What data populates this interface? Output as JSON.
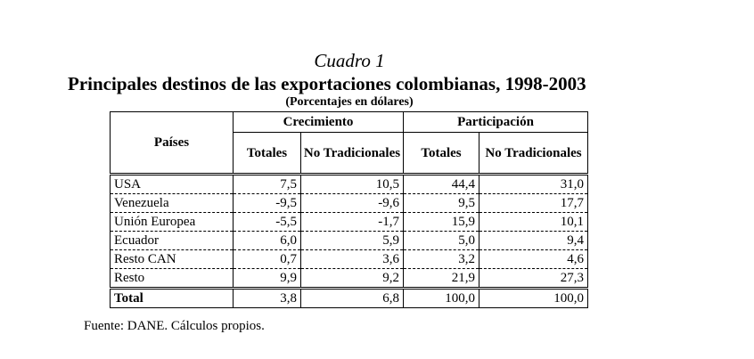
{
  "caption": "Cuadro 1",
  "title": "Principales destinos de las exportaciones colombianas, 1998-2003",
  "subtitle": "(Porcentajes en dólares)",
  "table": {
    "row_header": "Países",
    "groups": [
      "Crecimiento",
      "Participación"
    ],
    "subheaders": [
      "Totales",
      "No Tradicionales",
      "Totales",
      "No Tradicionales"
    ],
    "rows": [
      {
        "name": "USA",
        "values": [
          "7,5",
          "10,5",
          "44,4",
          "31,0"
        ]
      },
      {
        "name": "Venezuela",
        "values": [
          "-9,5",
          "-9,6",
          "9,5",
          "17,7"
        ]
      },
      {
        "name": "Unión Europea",
        "values": [
          "-5,5",
          "-1,7",
          "15,9",
          "10,1"
        ]
      },
      {
        "name": "Ecuador",
        "values": [
          "6,0",
          "5,9",
          "5,0",
          "9,4"
        ]
      },
      {
        "name": "Resto CAN",
        "values": [
          "0,7",
          "3,6",
          "3,2",
          "4,6"
        ]
      },
      {
        "name": "Resto",
        "values": [
          "9,9",
          "9,2",
          "21,9",
          "27,3"
        ]
      }
    ],
    "total": {
      "name": "Total",
      "values": [
        "3,8",
        "6,8",
        "100,0",
        "100,0"
      ]
    }
  },
  "source": "Fuente: DANE. Cálculos propios."
}
